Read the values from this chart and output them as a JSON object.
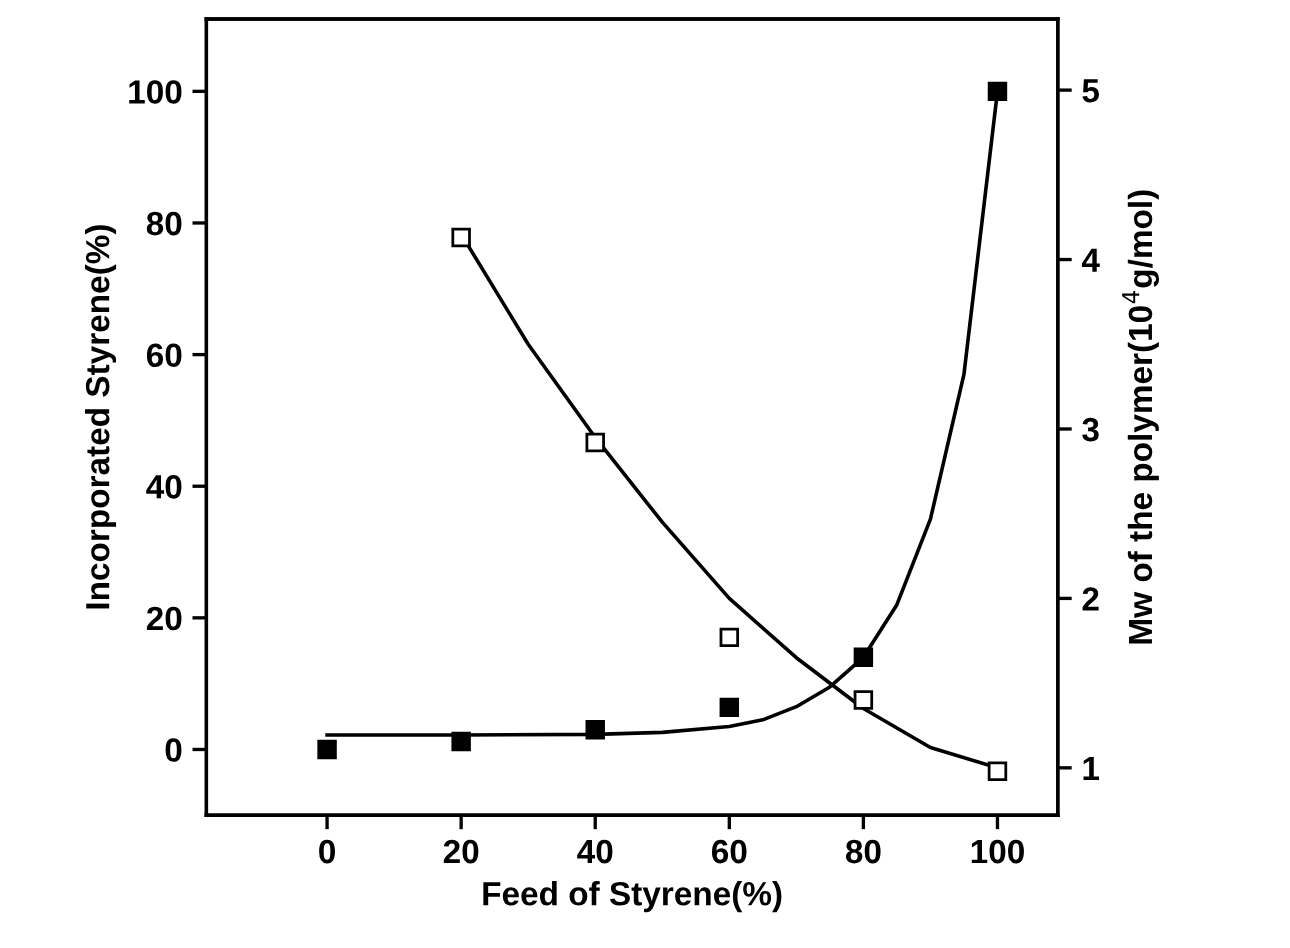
{
  "chart_data": {
    "type": "scatter",
    "xlabel": "Feed of Styrene(%)",
    "ylabel": "Incorporated Styrene(%)",
    "y2label": "Mw of the polymer(10$^{4}$g/mol)",
    "xlim": [
      -18,
      109
    ],
    "xticks": [
      0,
      20,
      40,
      60,
      80,
      100
    ],
    "ylim": [
      -10,
      111
    ],
    "yticks": [
      0,
      20,
      40,
      60,
      80,
      100
    ],
    "y2lim": [
      0.72,
      5.42
    ],
    "y2ticks": [
      1,
      2,
      3,
      4,
      5
    ],
    "grid": false,
    "legend": false,
    "marker": "square",
    "series": [
      {
        "color": "#000000",
        "x": [
          0,
          20,
          40,
          60,
          80,
          100
        ],
        "values": [
          0,
          1.2,
          3,
          6.4,
          14,
          100
        ]
      },
      {
        "color": "#000000",
        "axis": "y2",
        "x": [
          20,
          40,
          60,
          80,
          100
        ],
        "values": [
          4.13,
          2.92,
          1.77,
          1.4,
          0.98
        ]
      },
      {
        "type": "line",
        "color": "#000000",
        "marker": "none",
        "x": [
          0,
          20,
          40,
          50,
          60,
          65,
          70,
          75,
          80,
          85,
          90,
          95,
          100
        ],
        "values": [
          2.2,
          2.2,
          2.3,
          2.6,
          3.5,
          4.5,
          6.5,
          9.5,
          14,
          22,
          35,
          57,
          100
        ]
      },
      {
        "type": "line",
        "color": "#000000",
        "marker": "none",
        "axis": "y2",
        "x": [
          20,
          30,
          40,
          50,
          60,
          70,
          80,
          90,
          100
        ],
        "values": [
          4.15,
          3.5,
          2.95,
          2.45,
          2.0,
          1.65,
          1.35,
          1.12,
          1.0
        ]
      }
    ]
  }
}
